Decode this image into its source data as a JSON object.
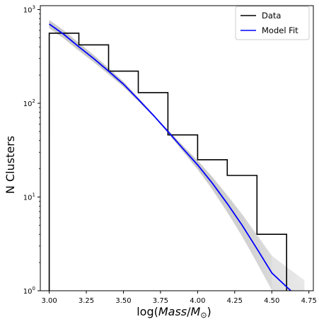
{
  "chart_data": {
    "type": "line",
    "xlabel": "log(Mass/M⊙)",
    "xlabel_parts": {
      "prefix": "log(",
      "mass": "Mass",
      "slash": "/",
      "msym": "M",
      "sub": "⊙",
      "suffix": ")"
    },
    "ylabel": "N Clusters",
    "xlim": [
      2.94,
      4.78
    ],
    "ylim": [
      1,
      1100
    ],
    "yscale": "log",
    "x_ticks": [
      "3.00",
      "3.25",
      "3.50",
      "3.75",
      "4.00",
      "4.25",
      "4.50",
      "4.75"
    ],
    "y_ticks": [
      {
        "value": 1,
        "base": "10",
        "exp": "0"
      },
      {
        "value": 10,
        "base": "10",
        "exp": "1"
      },
      {
        "value": 100,
        "base": "10",
        "exp": "2"
      },
      {
        "value": 1000,
        "base": "10",
        "exp": "3"
      }
    ],
    "legend": {
      "position": "top-right",
      "entries": [
        "Data",
        "Model Fit"
      ]
    },
    "series": [
      {
        "name": "Data",
        "kind": "step-histogram",
        "color": "#000000",
        "bin_edges": [
          3.0,
          3.2,
          3.4,
          3.6,
          3.8,
          4.0,
          4.2,
          4.4,
          4.6
        ],
        "counts": [
          560,
          420,
          220,
          130,
          46,
          25,
          17,
          4
        ]
      },
      {
        "name": "Model Fit",
        "kind": "curve",
        "color": "#0000ff",
        "x": [
          3.0,
          3.1,
          3.2,
          3.3,
          3.4,
          3.5,
          3.6,
          3.7,
          3.8,
          3.9,
          4.0,
          4.1,
          4.2,
          4.3,
          4.4,
          4.5,
          4.6,
          4.66
        ],
        "y": [
          700,
          540,
          400,
          300,
          220,
          160,
          110,
          75,
          50,
          33,
          22,
          14,
          8.5,
          5.0,
          2.8,
          1.55,
          1.1,
          0.9
        ]
      }
    ],
    "samples_color": "#c8c8c8",
    "sample_count": 40
  }
}
